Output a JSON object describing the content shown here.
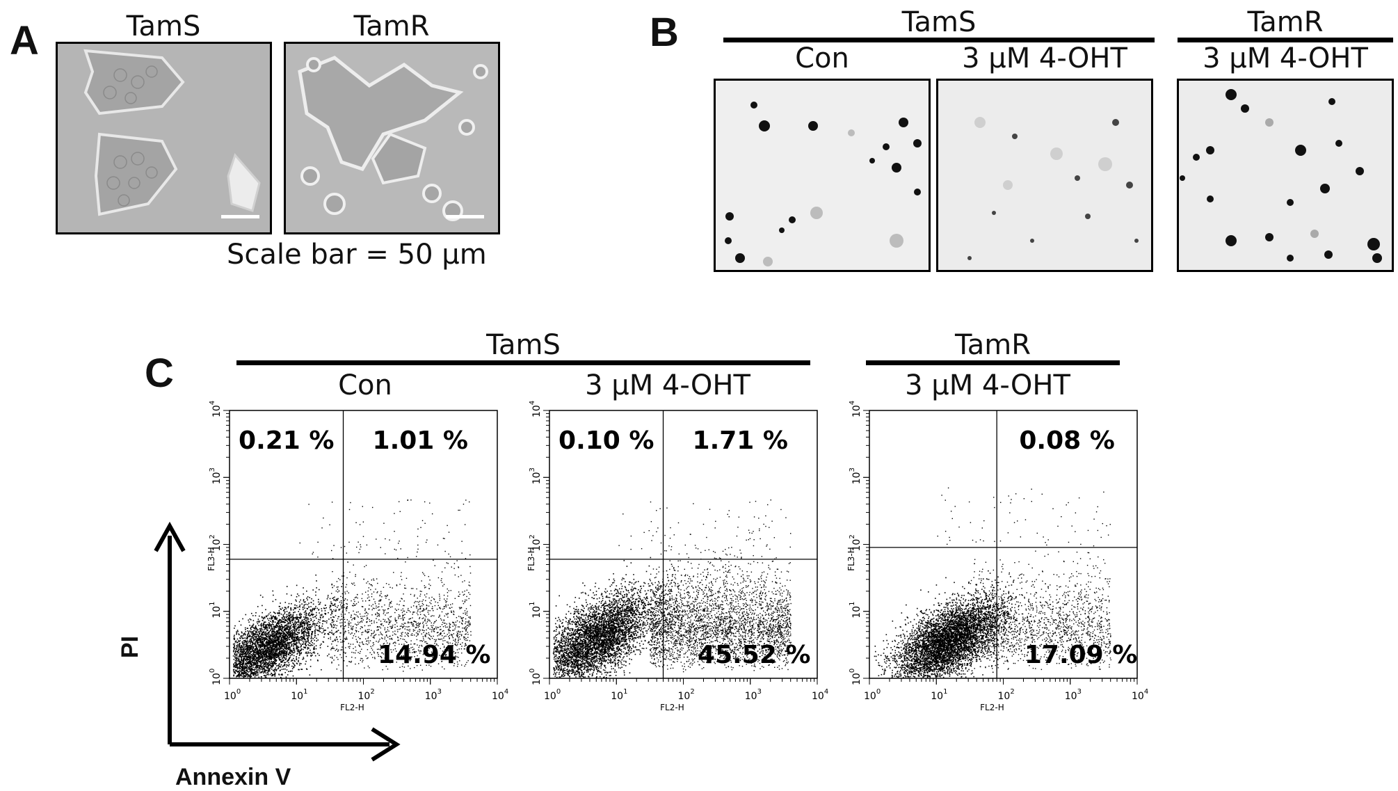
{
  "panel_a": {
    "letter": "A",
    "label_left": "TamS",
    "label_right": "TamR",
    "scale_bar_caption": "Scale bar = 50 μm"
  },
  "panel_b": {
    "letter": "B",
    "group_tams": "TamS",
    "group_tamr": "TamR",
    "col_con": "Con",
    "col_ohT_tams": "3 μM  4-OHT",
    "col_ohT_tamr": "3 μM  4-OHT"
  },
  "panel_c": {
    "letter": "C",
    "group_tams": "TamS",
    "group_tamr": "TamR",
    "col_con": "Con",
    "col_ohT_tams": "3 μM  4-OHT",
    "col_ohT_tamr": "3 μM  4-OHT",
    "y_axis": "PI",
    "x_axis": "Annexin V",
    "plot_xlabel": "FL2-H",
    "plot_ylabel": "FL3-H",
    "tick_labels": [
      "10",
      "10",
      "10",
      "10",
      "10"
    ],
    "tick_exponents": [
      "0",
      "1",
      "2",
      "3",
      "4"
    ]
  },
  "chart_data": [
    {
      "type": "scatter",
      "title": "Con",
      "xlabel": "FL2-H",
      "ylabel": "FL3-H",
      "xscale": "log",
      "yscale": "log",
      "xlim": [
        1,
        10000
      ],
      "ylim": [
        1,
        10000
      ],
      "quadrant_gates": {
        "x": 50,
        "y": 60
      },
      "quadrant_percent": {
        "upper_left": "0.21 %",
        "upper_right": "1.01 %",
        "lower_right": "14.94 %"
      }
    },
    {
      "type": "scatter",
      "title": "3 μM  4-OHT",
      "xlabel": "FL2-H",
      "ylabel": "FL3-H",
      "xscale": "log",
      "yscale": "log",
      "xlim": [
        1,
        10000
      ],
      "ylim": [
        1,
        10000
      ],
      "quadrant_gates": {
        "x": 50,
        "y": 60
      },
      "quadrant_percent": {
        "upper_left": "0.10 %",
        "upper_right": "1.71 %",
        "lower_right": "45.52 %"
      }
    },
    {
      "type": "scatter",
      "title": "3 μM  4-OHT",
      "xlabel": "FL2-H",
      "ylabel": "FL3-H",
      "xscale": "log",
      "yscale": "log",
      "xlim": [
        1,
        10000
      ],
      "ylim": [
        1,
        10000
      ],
      "quadrant_gates": {
        "x": 80,
        "y": 90
      },
      "quadrant_percent": {
        "upper_right": "0.08 %",
        "lower_right": "17.09 %"
      }
    }
  ]
}
